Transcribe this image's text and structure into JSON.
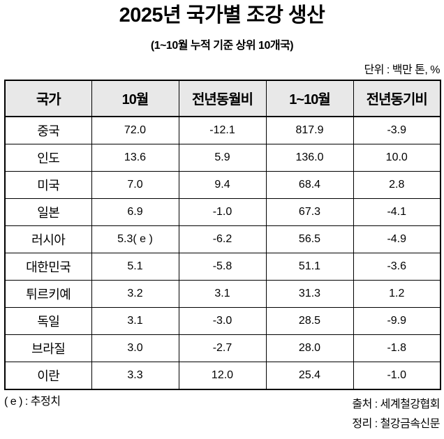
{
  "page": {
    "title": "2025년 국가별 조강 생산",
    "subtitle": "(1~10월 누적 기준 상위 10개국)",
    "unit_label": "단위 : 백만 톤, %",
    "footnote": "( e ) : 추정치",
    "source": "출처 : 세계철강협회",
    "credit": "정리 : 철강금속신문"
  },
  "table": {
    "columns": [
      "국가",
      "10월",
      "전년동월비",
      "1~10월",
      "전년동기비"
    ],
    "rows": [
      [
        "중국",
        "72.0",
        "-12.1",
        "817.9",
        "-3.9"
      ],
      [
        "인도",
        "13.6",
        "5.9",
        "136.0",
        "10.0"
      ],
      [
        "미국",
        "7.0",
        "9.4",
        "68.4",
        "2.8"
      ],
      [
        "일본",
        "6.9",
        "-1.0",
        "67.3",
        "-4.1"
      ],
      [
        "러시아",
        "5.3( e )",
        "-6.2",
        "56.5",
        "-4.9"
      ],
      [
        "대한민국",
        "5.1",
        "-5.8",
        "51.1",
        "-3.6"
      ],
      [
        "튀르키예",
        "3.2",
        "3.1",
        "31.3",
        "1.2"
      ],
      [
        "독일",
        "3.1",
        "-3.0",
        "28.5",
        "-9.9"
      ],
      [
        "브라질",
        "3.0",
        "-2.7",
        "28.0",
        "-1.8"
      ],
      [
        "이란",
        "3.3",
        "12.0",
        "25.4",
        "-1.0"
      ]
    ]
  },
  "chart_data": {
    "type": "table",
    "title": "2025년 국가별 조강 생산",
    "subtitle": "(1~10월 누적 기준 상위 10개국)",
    "unit": "백만 톤, %",
    "columns": [
      "국가",
      "10월",
      "전년동월비",
      "1~10월",
      "전년동기비"
    ],
    "rows": [
      {
        "country": "중국",
        "oct": 72.0,
        "yoy_month_pct": -12.1,
        "jan_oct": 817.9,
        "yoy_cum_pct": -3.9
      },
      {
        "country": "인도",
        "oct": 13.6,
        "yoy_month_pct": 5.9,
        "jan_oct": 136.0,
        "yoy_cum_pct": 10.0
      },
      {
        "country": "미국",
        "oct": 7.0,
        "yoy_month_pct": 9.4,
        "jan_oct": 68.4,
        "yoy_cum_pct": 2.8
      },
      {
        "country": "일본",
        "oct": 6.9,
        "yoy_month_pct": -1.0,
        "jan_oct": 67.3,
        "yoy_cum_pct": -4.1
      },
      {
        "country": "러시아",
        "oct": 5.3,
        "oct_estimate": true,
        "yoy_month_pct": -6.2,
        "jan_oct": 56.5,
        "yoy_cum_pct": -4.9
      },
      {
        "country": "대한민국",
        "oct": 5.1,
        "yoy_month_pct": -5.8,
        "jan_oct": 51.1,
        "yoy_cum_pct": -3.6
      },
      {
        "country": "튀르키예",
        "oct": 3.2,
        "yoy_month_pct": 3.1,
        "jan_oct": 31.3,
        "yoy_cum_pct": 1.2
      },
      {
        "country": "독일",
        "oct": 3.1,
        "yoy_month_pct": -3.0,
        "jan_oct": 28.5,
        "yoy_cum_pct": -9.9
      },
      {
        "country": "브라질",
        "oct": 3.0,
        "yoy_month_pct": -2.7,
        "jan_oct": 28.0,
        "yoy_cum_pct": -1.8
      },
      {
        "country": "이란",
        "oct": 3.3,
        "yoy_month_pct": 12.0,
        "jan_oct": 25.4,
        "yoy_cum_pct": -1.0
      }
    ],
    "notes": [
      "( e ) : 추정치",
      "출처 : 세계철강협회",
      "정리 : 철강금속신문"
    ]
  },
  "colors": {
    "header_bg": "#e8e8e8",
    "border": "#000000",
    "text": "#000000"
  }
}
